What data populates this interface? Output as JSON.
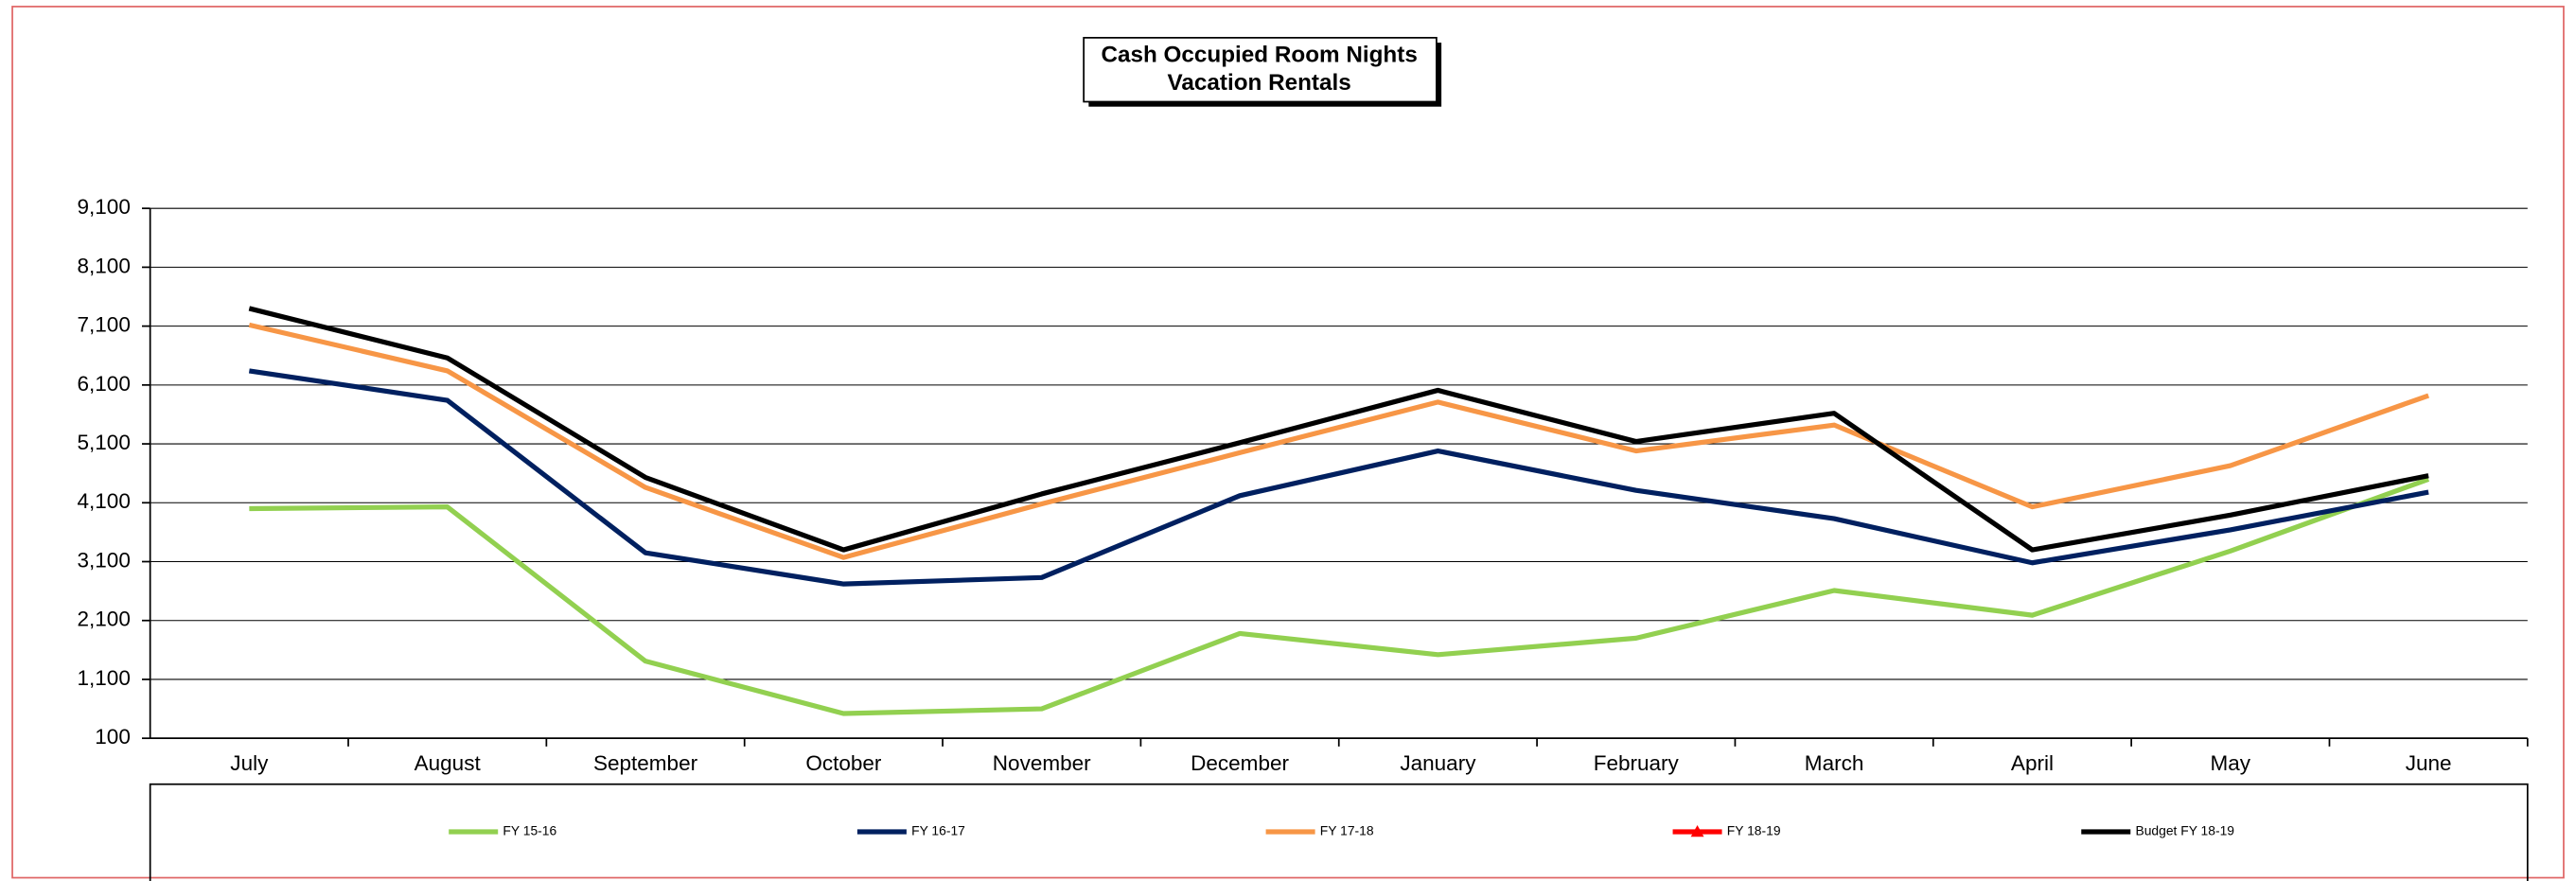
{
  "chart_data": {
    "type": "line",
    "title": [
      "Cash Occupied Room Nights",
      "Vacation Rentals"
    ],
    "categories": [
      "July",
      "August",
      "September",
      "October",
      "November",
      "December",
      "January",
      "February",
      "March",
      "April",
      "May",
      "June"
    ],
    "series": [
      {
        "name": "FY 15-16",
        "color": "#92d050",
        "values": [
          4000,
          4030,
          1410,
          520,
          600,
          1880,
          1520,
          1800,
          2610,
          2190,
          3280,
          4500
        ]
      },
      {
        "name": "FY 16-17",
        "color": "#002060",
        "values": [
          6340,
          5840,
          3250,
          2720,
          2830,
          4220,
          4980,
          4310,
          3830,
          3080,
          3640,
          4280
        ]
      },
      {
        "name": "FY 17-18",
        "color": "#f79646",
        "values": [
          7120,
          6340,
          4360,
          3170,
          4080,
          4950,
          5810,
          4980,
          5420,
          4030,
          4730,
          5920
        ]
      },
      {
        "name": "FY 18-19",
        "color": "#ff0000",
        "marker": "triangle",
        "values": [
          null,
          null,
          null,
          null,
          null,
          null,
          null,
          null,
          null,
          null,
          null,
          null
        ]
      },
      {
        "name": "Budget FY 18-19",
        "color": "#000000",
        "values": [
          7400,
          6560,
          4530,
          3300,
          4250,
          5120,
          6010,
          5140,
          5620,
          3300,
          3890,
          4560
        ]
      }
    ],
    "ylim": [
      100,
      9100
    ],
    "yticks": [
      100,
      {
        "value": 1100,
        "label": "1,100"
      },
      {
        "value": 2100,
        "label": "2,100"
      },
      {
        "value": 3100,
        "label": "3,100"
      },
      {
        "value": 4100,
        "label": "4,100"
      },
      {
        "value": 5100,
        "label": "5,100"
      },
      {
        "value": 6100,
        "label": "6,100"
      },
      {
        "value": 7100,
        "label": "7,100"
      },
      {
        "value": 8100,
        "label": "8,100"
      },
      {
        "value": 9100,
        "label": "9,100"
      }
    ],
    "grid": true,
    "legend": "bottom"
  }
}
